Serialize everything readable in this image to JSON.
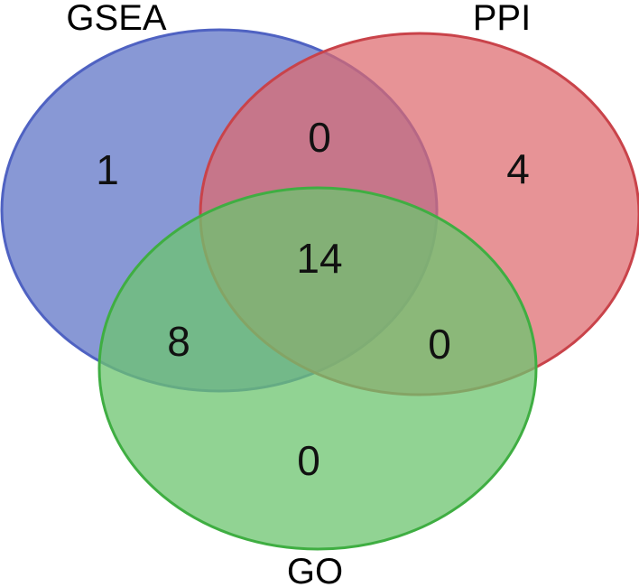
{
  "sets": [
    {
      "id": "gsea",
      "label": "GSEA",
      "color": "#6a7ecb"
    },
    {
      "id": "ppi",
      "label": "PPI",
      "color": "#de6a6d"
    },
    {
      "id": "go",
      "label": "GO",
      "color": "#6cc46f"
    }
  ],
  "regions": {
    "gsea_only": "1",
    "ppi_only": "4",
    "go_only": "0",
    "gsea_ppi": "0",
    "gsea_go": "8",
    "ppi_go": "0",
    "all_three": "14"
  }
}
